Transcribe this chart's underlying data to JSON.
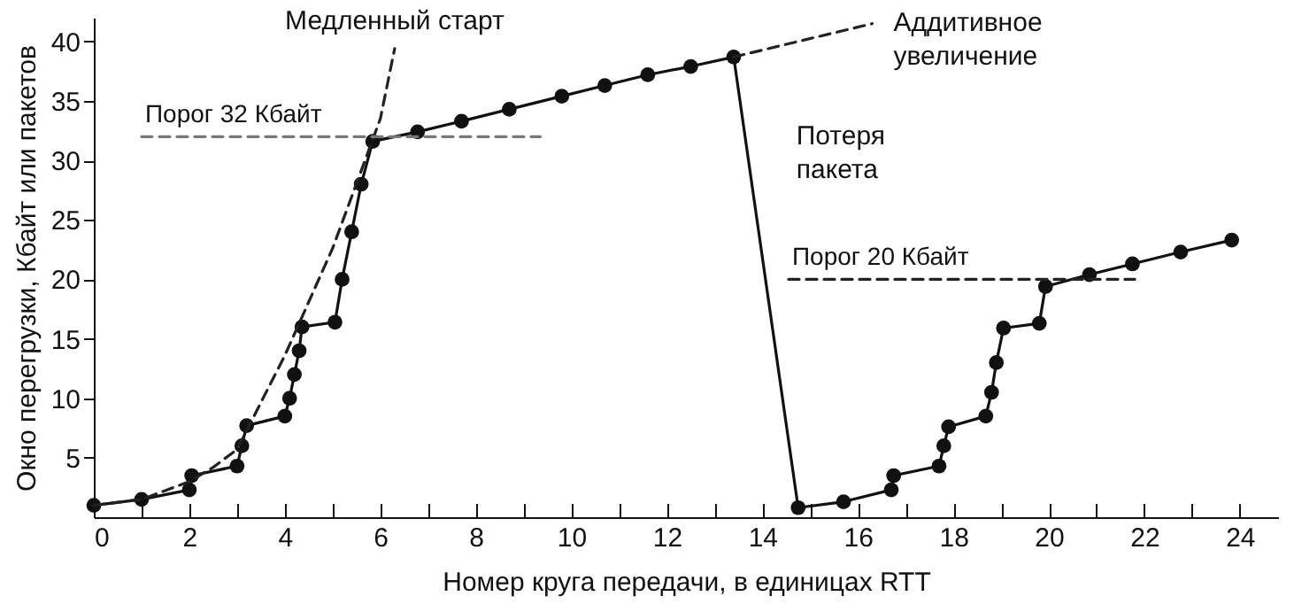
{
  "chart_data": {
    "type": "line",
    "xlabel": "Номер круга передачи, в единицах RTT",
    "ylabel": "Окно перегрузки, Кбайт или пакетов",
    "xlim": [
      0,
      24.8
    ],
    "ylim": [
      0,
      42
    ],
    "xticks": [
      0,
      {
        "value": 1,
        "label": null
      },
      2,
      {
        "value": 3,
        "label": null
      },
      4,
      {
        "value": 5,
        "label": null
      },
      6,
      {
        "value": 7,
        "label": null
      },
      8,
      {
        "value": 9,
        "label": null
      },
      10,
      {
        "value": 11,
        "label": null
      },
      12,
      {
        "value": 13,
        "label": null
      },
      14,
      {
        "value": 15,
        "label": null
      },
      16,
      {
        "value": 17,
        "label": null
      },
      18,
      {
        "value": 19,
        "label": null
      },
      20,
      {
        "value": 21,
        "label": null
      },
      22,
      {
        "value": 23,
        "label": null
      },
      24
    ],
    "yticks": [
      5,
      10,
      15,
      20,
      25,
      30,
      35,
      40
    ],
    "marker": "circle",
    "line_style": "solid",
    "series": [
      {
        "color": "#111111",
        "x": [
          0,
          1,
          2,
          2.05,
          3,
          3.1,
          3.2,
          4,
          4.1,
          4.2,
          4.3,
          4.36,
          5.05,
          5.2,
          5.4,
          5.6,
          5.84,
          6.78,
          7.7,
          8.7,
          9.8,
          10.7,
          11.6,
          12.5,
          13.4,
          14.75,
          15.7,
          16.7,
          16.75,
          17.7,
          17.8,
          17.9,
          18.68,
          18.8,
          18.9,
          19.05,
          19.8,
          19.93,
          20.85,
          21.75,
          22.76,
          23.83
        ],
        "values": [
          1,
          1.5,
          2.3,
          3.5,
          4.3,
          6,
          7.7,
          8.5,
          10,
          12,
          14,
          16,
          16.4,
          20,
          24,
          28,
          31.6,
          32.4,
          33.3,
          34.3,
          35.4,
          36.3,
          37.2,
          37.9,
          38.7,
          0.8,
          1.3,
          2.3,
          3.5,
          4.3,
          6,
          7.6,
          8.5,
          10.5,
          13,
          15.9,
          16.3,
          19.4,
          20.4,
          21.3,
          22.3,
          23.3
        ]
      },
      {
        "line_style": "dashed",
        "marker": "none",
        "color": "#222222",
        "x": [
          0,
          1,
          2,
          2.5,
          3,
          4,
          5,
          6,
          6.3
        ],
        "values": [
          1,
          1.5,
          3,
          4.2,
          5.7,
          13.6,
          22.6,
          33.5,
          39.4
        ]
      },
      {
        "line_style": "dashed",
        "marker": "none",
        "color": "#222222",
        "x": [
          13.4,
          16.3
        ],
        "values": [
          38.7,
          41.5
        ]
      },
      {
        "name": "Порог 32 Кбайт",
        "line_style": "dashed",
        "marker": "none",
        "color": "#777777",
        "x": [
          1,
          9.35
        ],
        "values": [
          32,
          32
        ]
      },
      {
        "name": "Порог 20 Кбайт",
        "line_style": "dashed",
        "marker": "none",
        "color": "#222222",
        "x": [
          14.55,
          21.8
        ],
        "values": [
          20,
          20
        ]
      }
    ],
    "annotations": [
      {
        "text": "Медленный старт",
        "x": 6.3,
        "y": 39.4
      },
      {
        "text": "Аддитивное\nувеличение",
        "x": 16.3,
        "y": 41.5
      },
      {
        "text": "Потеря\nпакета",
        "x": 13.6,
        "y": 34.3
      }
    ]
  }
}
